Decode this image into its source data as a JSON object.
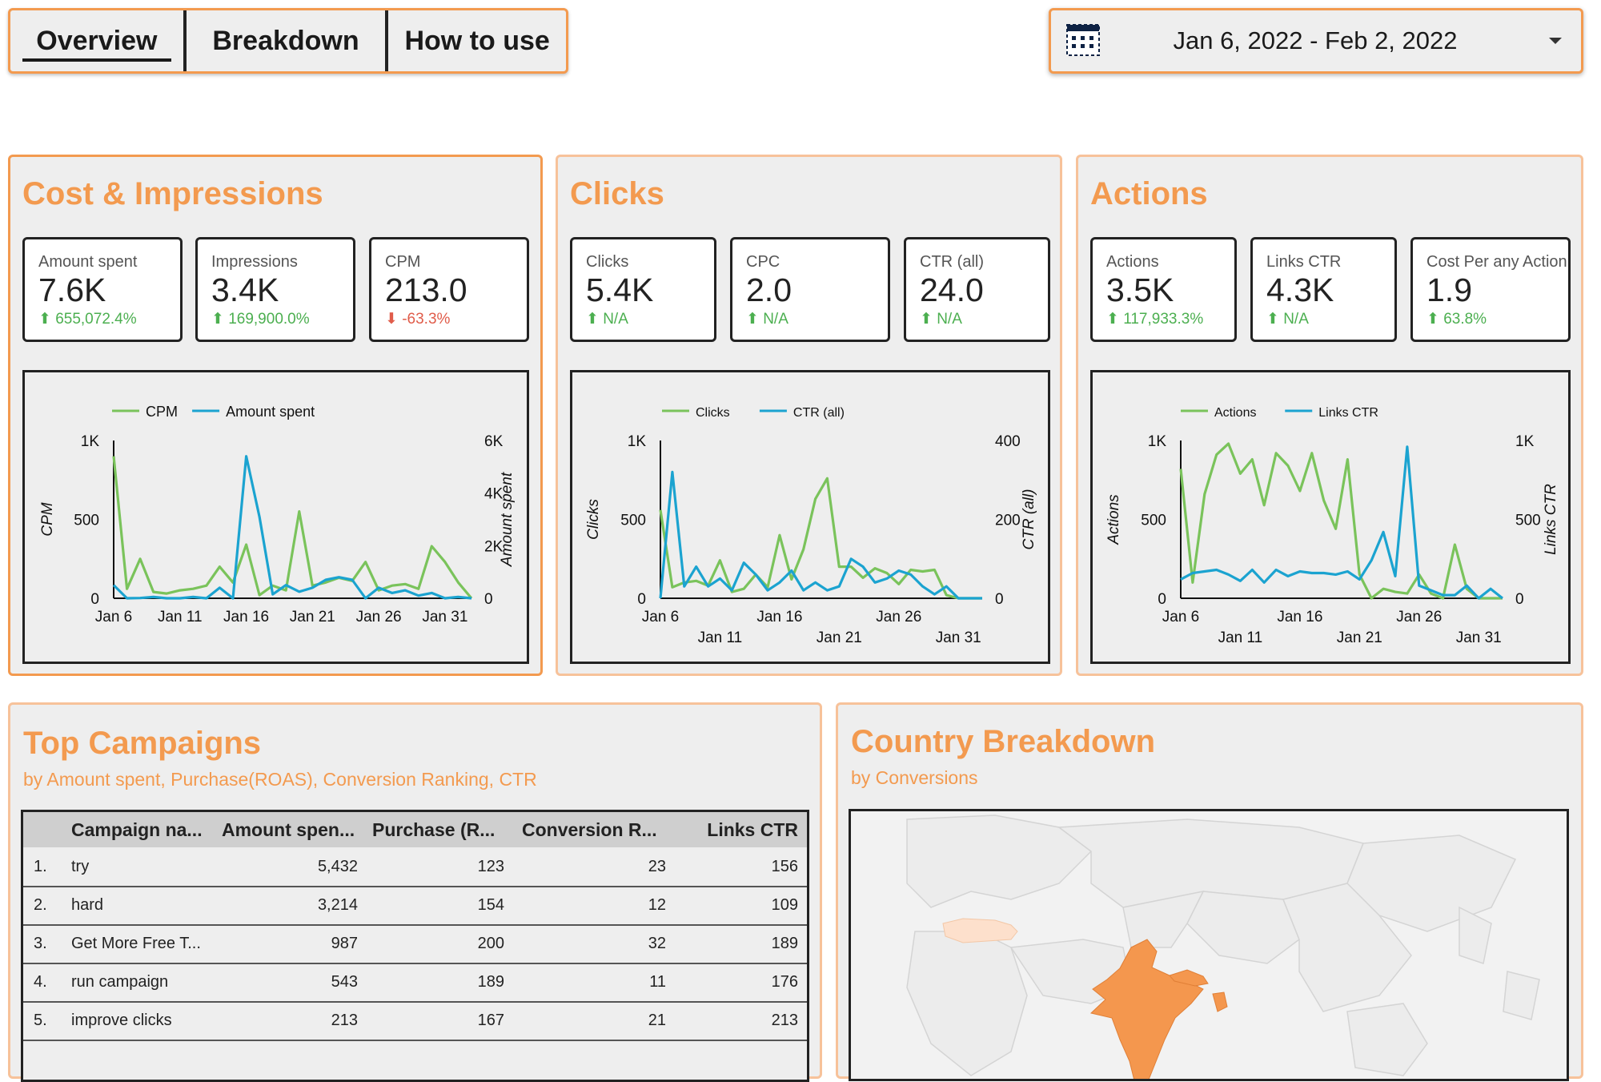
{
  "tabs": [
    "Overview",
    "Breakdown",
    "How to use"
  ],
  "date_range": "Jan 6, 2022 - Feb 2, 2022",
  "colors": {
    "accent": "#f39a4f",
    "green": "#7ac35b",
    "blue": "#1ba3d0",
    "up": "#4caf50",
    "down": "#e05c4a"
  },
  "cost_panel": {
    "title": "Cost & Impressions",
    "kpis": [
      {
        "label": "Amount spent",
        "value": "7.6K",
        "delta": "655,072.4%",
        "dir": "up"
      },
      {
        "label": "Impressions",
        "value": "3.4K",
        "delta": "169,900.0%",
        "dir": "up"
      },
      {
        "label": "CPM",
        "value": "213.0",
        "delta": "-63.3%",
        "dir": "down"
      }
    ]
  },
  "clicks_panel": {
    "title": "Clicks",
    "kpis": [
      {
        "label": "Clicks",
        "value": "5.4K",
        "delta": "N/A",
        "dir": "up"
      },
      {
        "label": "CPC",
        "value": "2.0",
        "delta": "N/A",
        "dir": "up"
      },
      {
        "label": "CTR (all)",
        "value": "24.0",
        "delta": "N/A",
        "dir": "up"
      }
    ]
  },
  "actions_panel": {
    "title": "Actions",
    "kpis": [
      {
        "label": "Actions",
        "value": "3.5K",
        "delta": "117,933.3%",
        "dir": "up"
      },
      {
        "label": "Links CTR",
        "value": "4.3K",
        "delta": "N/A",
        "dir": "up"
      },
      {
        "label": "Cost Per any Action",
        "value": "1.9",
        "delta": "63.8%",
        "dir": "up"
      }
    ]
  },
  "chart_data": [
    {
      "type": "line",
      "x": [
        "Jan 6",
        "Jan 7",
        "Jan 8",
        "Jan 9",
        "Jan 10",
        "Jan 11",
        "Jan 12",
        "Jan 13",
        "Jan 14",
        "Jan 15",
        "Jan 16",
        "Jan 17",
        "Jan 18",
        "Jan 19",
        "Jan 20",
        "Jan 21",
        "Jan 22",
        "Jan 23",
        "Jan 24",
        "Jan 25",
        "Jan 26",
        "Jan 27",
        "Jan 28",
        "Jan 29",
        "Jan 30",
        "Jan 31",
        "Feb 1",
        "Feb 2"
      ],
      "x_tick_labels": [
        "Jan 6",
        "Jan 11",
        "Jan 16",
        "Jan 21",
        "Jan 26",
        "Jan 31"
      ],
      "series": [
        {
          "name": "CPM",
          "axis": "left",
          "values": [
            900,
            60,
            250,
            40,
            30,
            50,
            60,
            80,
            200,
            100,
            340,
            20,
            80,
            50,
            550,
            80,
            100,
            130,
            110,
            230,
            50,
            80,
            90,
            60,
            330,
            230,
            100,
            0
          ]
        },
        {
          "name": "Amount spent",
          "axis": "right",
          "values": [
            500,
            0,
            10,
            50,
            0,
            0,
            50,
            0,
            400,
            0,
            5400,
            3100,
            150,
            500,
            250,
            400,
            700,
            800,
            700,
            0,
            400,
            200,
            300,
            100,
            200,
            0,
            50,
            0
          ]
        }
      ],
      "y_left": {
        "label": "CPM",
        "ticks": [
          "0",
          "500",
          "1K"
        ],
        "ylim": [
          0,
          1000
        ]
      },
      "y_right": {
        "label": "Amount spent",
        "ticks": [
          "0",
          "2K",
          "4K",
          "6K"
        ],
        "ylim": [
          0,
          6000
        ]
      },
      "legend": "top"
    },
    {
      "type": "line",
      "x": [
        "Jan 6",
        "Jan 7",
        "Jan 8",
        "Jan 9",
        "Jan 10",
        "Jan 11",
        "Jan 12",
        "Jan 13",
        "Jan 14",
        "Jan 15",
        "Jan 16",
        "Jan 17",
        "Jan 18",
        "Jan 19",
        "Jan 20",
        "Jan 21",
        "Jan 22",
        "Jan 23",
        "Jan 24",
        "Jan 25",
        "Jan 26",
        "Jan 27",
        "Jan 28",
        "Jan 29",
        "Jan 30",
        "Jan 31",
        "Feb 1",
        "Feb 2"
      ],
      "x_tick_labels": [
        "Jan 6",
        "Jan 11",
        "Jan 16",
        "Jan 21",
        "Jan 26",
        "Jan 31"
      ],
      "series": [
        {
          "name": "Clicks",
          "axis": "left",
          "values": [
            560,
            70,
            100,
            110,
            80,
            240,
            40,
            60,
            150,
            70,
            400,
            120,
            310,
            630,
            760,
            200,
            200,
            130,
            190,
            160,
            90,
            180,
            170,
            180,
            20,
            0,
            0,
            0
          ]
        },
        {
          "name": "CTR (all)",
          "axis": "right",
          "values": [
            0,
            320,
            30,
            80,
            30,
            50,
            20,
            90,
            60,
            20,
            40,
            70,
            20,
            40,
            20,
            30,
            100,
            80,
            40,
            50,
            70,
            60,
            30,
            10,
            30,
            0,
            0,
            0
          ]
        }
      ],
      "y_left": {
        "label": "Clicks",
        "ticks": [
          "0",
          "500",
          "1K"
        ],
        "ylim": [
          0,
          1000
        ]
      },
      "y_right": {
        "label": "CTR (all)",
        "ticks": [
          "0",
          "200",
          "400"
        ],
        "ylim": [
          0,
          400
        ]
      },
      "legend": "top"
    },
    {
      "type": "line",
      "x": [
        "Jan 6",
        "Jan 7",
        "Jan 8",
        "Jan 9",
        "Jan 10",
        "Jan 11",
        "Jan 12",
        "Jan 13",
        "Jan 14",
        "Jan 15",
        "Jan 16",
        "Jan 17",
        "Jan 18",
        "Jan 19",
        "Jan 20",
        "Jan 21",
        "Jan 22",
        "Jan 23",
        "Jan 24",
        "Jan 25",
        "Jan 26",
        "Jan 27",
        "Jan 28",
        "Jan 29",
        "Jan 30",
        "Jan 31",
        "Feb 1",
        "Feb 2"
      ],
      "x_tick_labels": [
        "Jan 6",
        "Jan 11",
        "Jan 16",
        "Jan 21",
        "Jan 26",
        "Jan 31"
      ],
      "series": [
        {
          "name": "Actions",
          "axis": "left",
          "values": [
            820,
            100,
            660,
            910,
            980,
            790,
            880,
            590,
            920,
            840,
            680,
            920,
            620,
            440,
            880,
            150,
            0,
            60,
            40,
            30,
            150,
            30,
            0,
            340,
            60,
            0,
            0,
            0
          ]
        },
        {
          "name": "Links CTR",
          "axis": "right",
          "values": [
            120,
            160,
            170,
            180,
            150,
            110,
            180,
            100,
            180,
            140,
            170,
            160,
            160,
            150,
            170,
            120,
            240,
            420,
            140,
            960,
            80,
            50,
            20,
            20,
            80,
            0,
            60,
            0
          ]
        }
      ],
      "y_left": {
        "label": "Actions",
        "ticks": [
          "0",
          "500",
          "1K"
        ],
        "ylim": [
          0,
          1000
        ]
      },
      "y_right": {
        "label": "Links CTR",
        "ticks": [
          "0",
          "500",
          "1K"
        ],
        "ylim": [
          0,
          1000
        ]
      },
      "legend": "top"
    }
  ],
  "campaigns": {
    "title": "Top Campaigns",
    "subtitle": "by  Amount spent, Purchase(ROAS), Conversion Ranking, CTR",
    "columns": [
      "Campaign na...",
      "Amount spen...",
      "Purchase (R...",
      "Conversion R...",
      "Links CTR"
    ],
    "rows": [
      {
        "num": "1.",
        "name": "try",
        "amount": "5,432",
        "purchase": "123",
        "conversion": "23",
        "ctr": "156"
      },
      {
        "num": "2.",
        "name": "hard",
        "amount": "3,214",
        "purchase": "154",
        "conversion": "12",
        "ctr": "109"
      },
      {
        "num": "3.",
        "name": "Get More Free T...",
        "amount": "987",
        "purchase": "200",
        "conversion": "32",
        "ctr": "189"
      },
      {
        "num": "4.",
        "name": "run campaign",
        "amount": "543",
        "purchase": "189",
        "conversion": "11",
        "ctr": "176"
      },
      {
        "num": "5.",
        "name": "improve clicks",
        "amount": "213",
        "purchase": "167",
        "conversion": "21",
        "ctr": "213"
      }
    ]
  },
  "country": {
    "title": "Country Breakdown",
    "subtitle": "by Conversions",
    "highlighted": [
      {
        "country": "India",
        "intensity": "high"
      },
      {
        "country": "Nepal",
        "intensity": "high"
      },
      {
        "country": "Turkey",
        "intensity": "low"
      }
    ]
  }
}
